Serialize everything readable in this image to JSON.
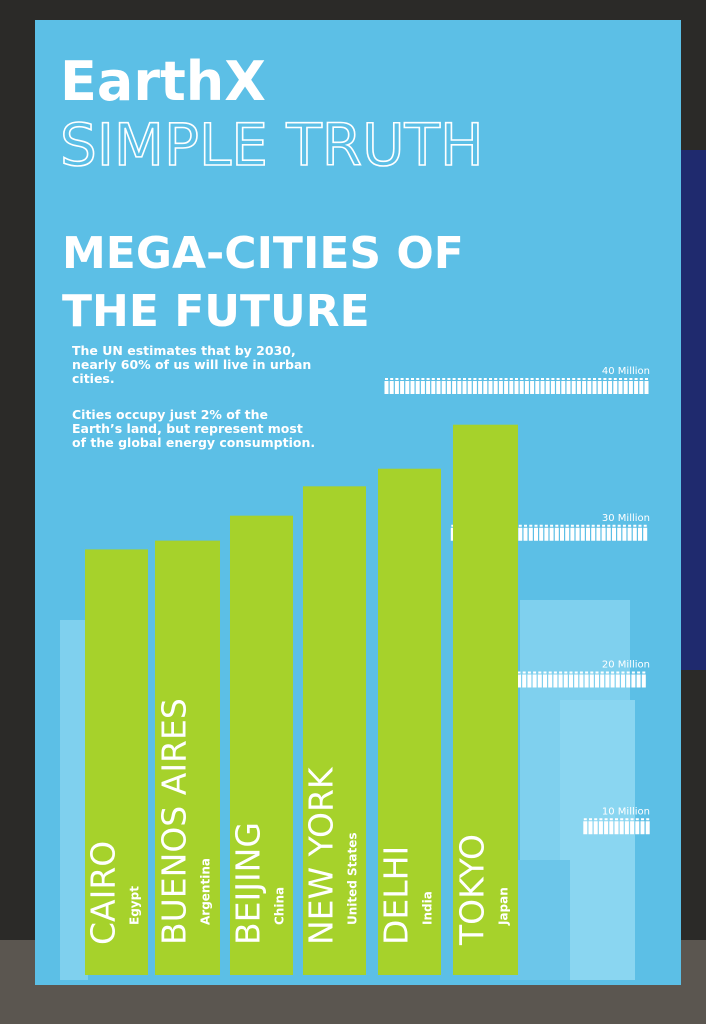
{
  "header": {
    "brand": "EarthX",
    "tagline": "SIMPLE TRUTH"
  },
  "chart_data": {
    "type": "bar",
    "title": [
      "MEGA-CITIES OF",
      "THE FUTURE"
    ],
    "notes": [
      "The UN estimates that by 2030, nearly 60% of us will live in urban cities.",
      "Cities occupy just 2% of the Earth’s land, but represent most of the global energy consumption."
    ],
    "categories": [
      "CAIRO",
      "BUENOS AIRES",
      "BEIJING",
      "NEW YORK",
      "DELHI",
      "TOKYO"
    ],
    "countries": [
      "Egypt",
      "Argentina",
      "China",
      "United States",
      "India",
      "Japan"
    ],
    "values": [
      29,
      29.6,
      31.3,
      33.3,
      34.5,
      37.5
    ],
    "color": "#a6d22b",
    "ylim": [
      0,
      40
    ],
    "yticks": [
      {
        "value": 10,
        "label": "10 Million"
      },
      {
        "value": 20,
        "label": "20 Million"
      },
      {
        "value": 30,
        "label": "30 Million"
      },
      {
        "value": 40,
        "label": "40 Million"
      }
    ]
  }
}
